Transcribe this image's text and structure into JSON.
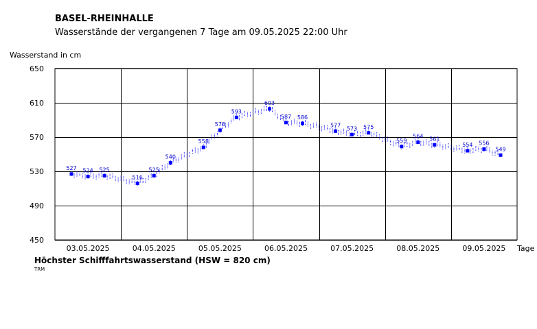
{
  "header": {
    "title": "BASEL-RHEINHALLE",
    "subtitle": "Wasserstände der vergangenen 7 Tage am 09.05.2025 22:00 Uhr"
  },
  "footer": {
    "hsw": "Höchster Schifffahrtswasserstand (HSW = 820 cm)",
    "note": "TRM"
  },
  "chart_data": {
    "type": "scatter",
    "ylabel": "Wasserstand in cm",
    "xlabel": "Tage",
    "ylim": [
      450,
      650
    ],
    "yticks": [
      450,
      490,
      530,
      570,
      610,
      650
    ],
    "x_day_labels": [
      "03.05.2025",
      "04.05.2025",
      "05.05.2025",
      "06.05.2025",
      "07.05.2025",
      "08.05.2025",
      "09.05.2025"
    ],
    "grid": true,
    "colors": {
      "series": "#0000ff",
      "labels": "#0000cc",
      "grid": "#000000"
    },
    "labeled_points": [
      {
        "day": 0,
        "hour": 6,
        "value": 527
      },
      {
        "day": 0,
        "hour": 12,
        "value": 524
      },
      {
        "day": 0,
        "hour": 18,
        "value": 525
      },
      {
        "day": 1,
        "hour": 6,
        "value": 516
      },
      {
        "day": 1,
        "hour": 12,
        "value": 525
      },
      {
        "day": 1,
        "hour": 18,
        "value": 540
      },
      {
        "day": 2,
        "hour": 6,
        "value": 558
      },
      {
        "day": 2,
        "hour": 12,
        "value": 578
      },
      {
        "day": 2,
        "hour": 18,
        "value": 593
      },
      {
        "day": 3,
        "hour": 6,
        "value": 603
      },
      {
        "day": 3,
        "hour": 12,
        "value": 587
      },
      {
        "day": 3,
        "hour": 18,
        "value": 586
      },
      {
        "day": 4,
        "hour": 6,
        "value": 577
      },
      {
        "day": 4,
        "hour": 12,
        "value": 573
      },
      {
        "day": 4,
        "hour": 18,
        "value": 575
      },
      {
        "day": 5,
        "hour": 6,
        "value": 559
      },
      {
        "day": 5,
        "hour": 12,
        "value": 564
      },
      {
        "day": 5,
        "hour": 18,
        "value": 561
      },
      {
        "day": 6,
        "hour": 6,
        "value": 554
      },
      {
        "day": 6,
        "hour": 12,
        "value": 556
      },
      {
        "day": 6,
        "hour": 18,
        "value": 549
      }
    ]
  }
}
